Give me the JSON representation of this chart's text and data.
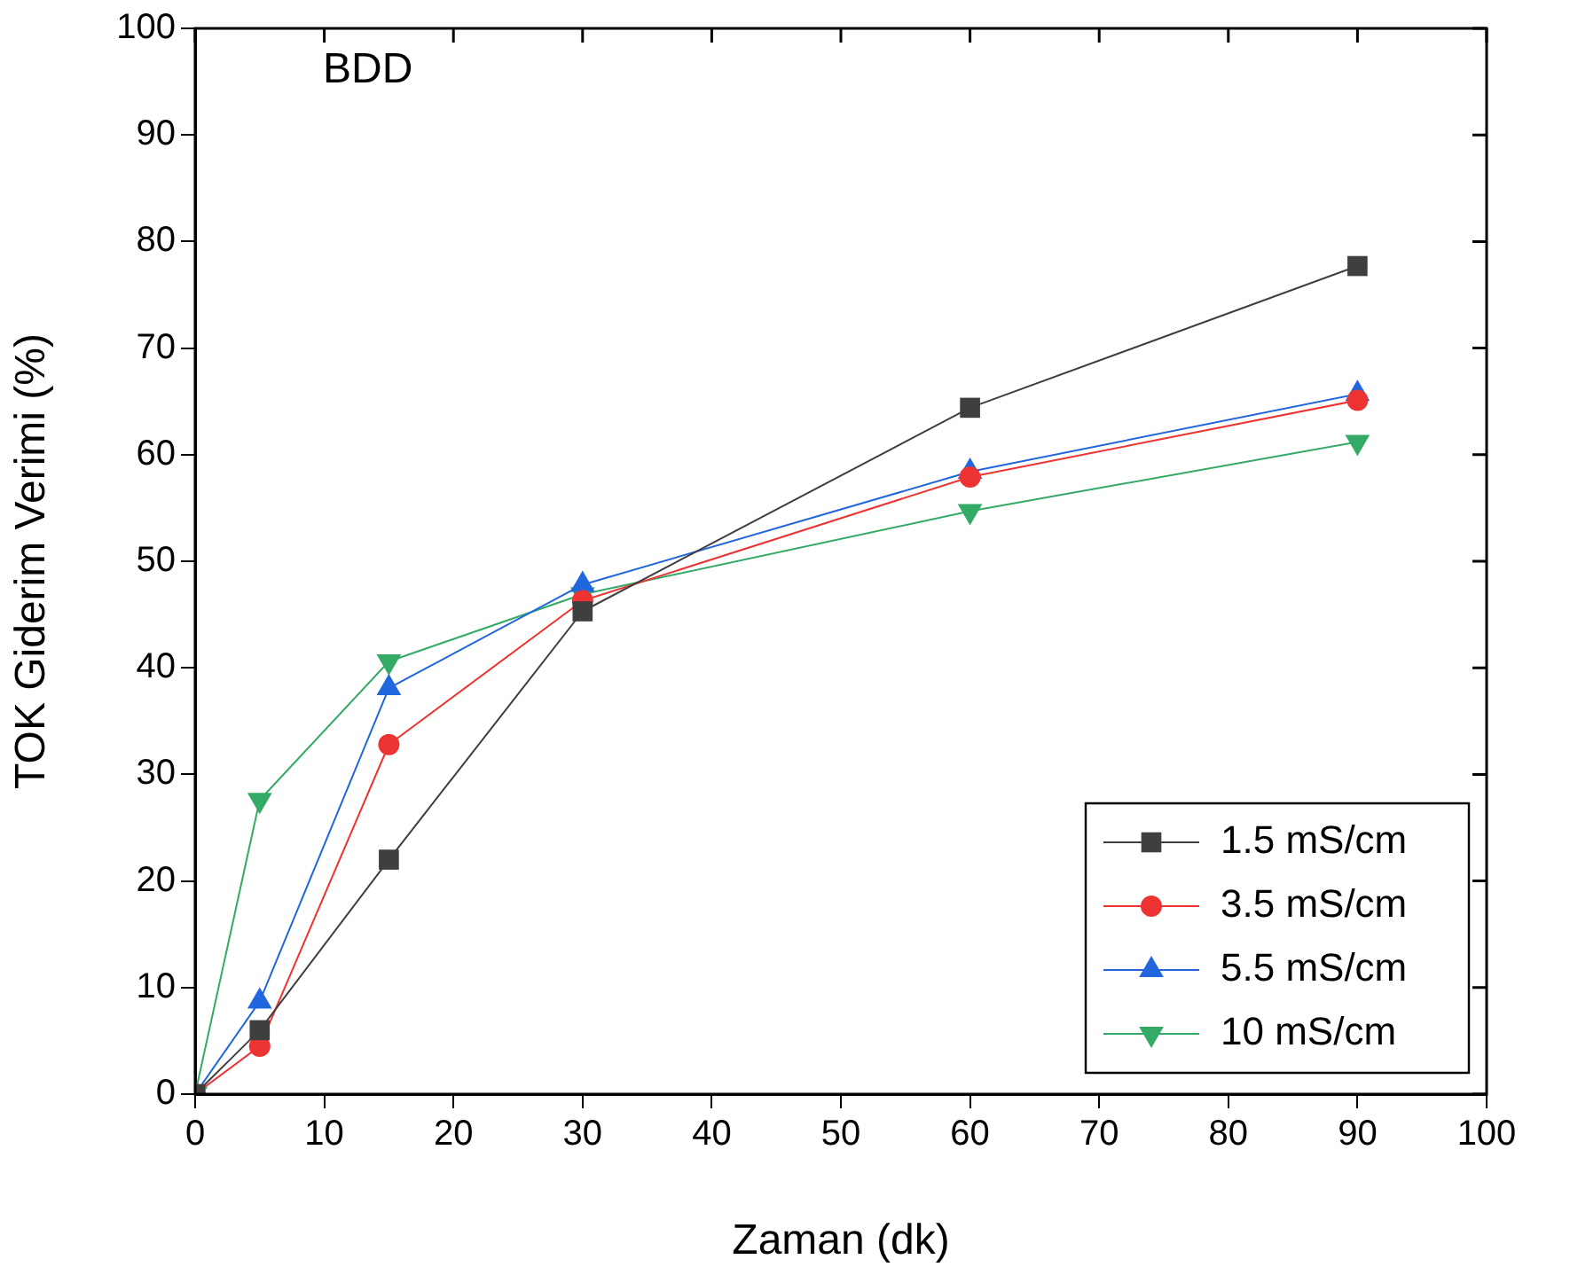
{
  "chart_data": {
    "type": "line",
    "xlabel": "Zaman (dk)",
    "ylabel": "TOK Giderim Verimi (%)",
    "annotations": [
      "BDD"
    ],
    "x": [
      0,
      5,
      15,
      30,
      60,
      90
    ],
    "series": [
      {
        "name": "1.5 mS/cm",
        "color": "#3f3f3f",
        "marker": "square",
        "values": [
          0,
          6,
          22,
          45.3,
          64.4,
          77.7
        ]
      },
      {
        "name": "3.5 mS/cm",
        "color": "#ee3333",
        "marker": "circle",
        "values": [
          0,
          4.5,
          32.8,
          46.3,
          57.9,
          65.1
        ]
      },
      {
        "name": "5.5 mS/cm",
        "color": "#2266dd",
        "marker": "triangle",
        "values": [
          0,
          8.7,
          38.1,
          47.8,
          58.4,
          65.7
        ]
      },
      {
        "name": "10 mS/cm",
        "color": "#33aa66",
        "marker": "triangle-down",
        "values": [
          0,
          27.6,
          40.6,
          46.9,
          54.7,
          61.2
        ]
      }
    ],
    "xlim": [
      0,
      100
    ],
    "xticks": [
      0,
      10,
      20,
      30,
      40,
      50,
      60,
      70,
      80,
      90,
      100
    ],
    "ylim": [
      0,
      100
    ],
    "yticks": [
      0,
      10,
      20,
      30,
      40,
      50,
      60,
      70,
      80,
      90,
      100
    ],
    "grid": false,
    "legend": "bottom right"
  }
}
